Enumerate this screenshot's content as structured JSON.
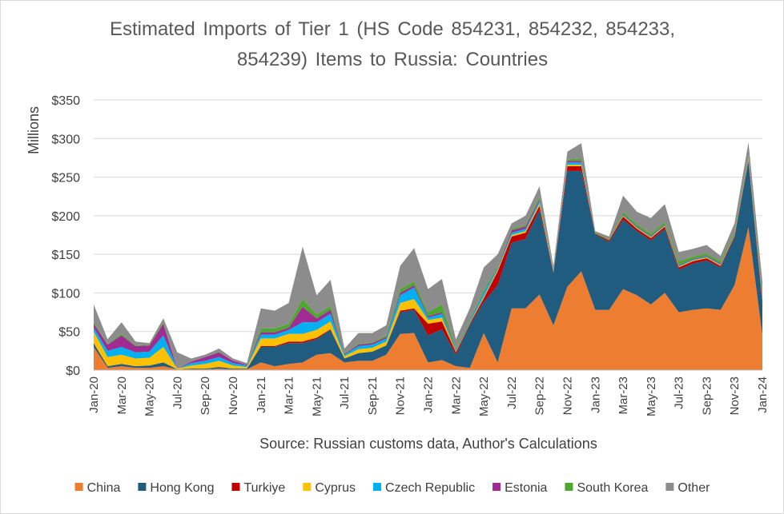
{
  "chart_data": {
    "type": "stacked-area",
    "title": "Estimated Imports of Tier 1 (HS Code 854231, 854232, 854233, 854239) Items to Russia: Countries",
    "x_label": "Source: Russian customs data, Author's Calculations",
    "y_label": "Millions",
    "categories": [
      "Jan-20",
      null,
      "Mar-20",
      null,
      "May-20",
      null,
      "Jul-20",
      null,
      "Sep-20",
      null,
      "Nov-20",
      null,
      "Jan-21",
      null,
      "Mar-21",
      null,
      "May-21",
      null,
      "Jul-21",
      null,
      "Sep-21",
      null,
      "Nov-21",
      null,
      "Jan-22",
      null,
      "Mar-22",
      null,
      "May-22",
      null,
      "Jul-22",
      null,
      "Sep-22",
      null,
      "Nov-22",
      null,
      "Jan-23",
      null,
      "Mar-23",
      null,
      "May-23",
      null,
      "Jul-23",
      null,
      "Sep-23",
      null,
      "Nov-23",
      null,
      "Jan-24"
    ],
    "ylim": [
      0,
      350
    ],
    "yticks": [
      {
        "value": 0,
        "label": "$0"
      },
      {
        "value": 50,
        "label": "$50"
      },
      {
        "value": 100,
        "label": "$100"
      },
      {
        "value": 150,
        "label": "$150"
      },
      {
        "value": 200,
        "label": "$200"
      },
      {
        "value": 250,
        "label": "$250"
      },
      {
        "value": 300,
        "label": "$300"
      },
      {
        "value": 350,
        "label": "$350"
      }
    ],
    "grid": true,
    "legend": "bottom",
    "series": [
      {
        "name": "China",
        "color": "#ed7d31",
        "values": [
          30,
          3,
          5,
          3,
          3,
          5,
          1,
          1,
          1,
          2,
          1,
          1,
          10,
          5,
          8,
          10,
          20,
          22,
          10,
          12,
          12,
          20,
          47,
          48,
          10,
          13,
          5,
          3,
          48,
          10,
          80,
          80,
          98,
          58,
          108,
          128,
          78,
          78,
          105,
          97,
          85,
          100,
          75,
          78,
          80,
          78,
          110,
          185,
          45
        ]
      },
      {
        "name": "Hong Kong",
        "color": "#1f5c80",
        "values": [
          5,
          2,
          3,
          2,
          3,
          5,
          0,
          1,
          1,
          2,
          1,
          1,
          20,
          25,
          27,
          25,
          20,
          30,
          5,
          10,
          12,
          12,
          28,
          30,
          35,
          40,
          15,
          55,
          40,
          100,
          85,
          90,
          110,
          68,
          150,
          130,
          98,
          88,
          90,
          83,
          83,
          83,
          55,
          60,
          62,
          55,
          62,
          85,
          40
        ]
      },
      {
        "name": "Turkiye",
        "color": "#c00000",
        "values": [
          0,
          0,
          0,
          0,
          0,
          0,
          0,
          0,
          0,
          0,
          0,
          0,
          1,
          1,
          2,
          2,
          2,
          1,
          0,
          0,
          0,
          0,
          2,
          2,
          15,
          10,
          3,
          2,
          5,
          18,
          8,
          8,
          5,
          1,
          6,
          6,
          1,
          2,
          4,
          3,
          3,
          3,
          3,
          3,
          3,
          2,
          2,
          2,
          5
        ]
      },
      {
        "name": "Cyprus",
        "color": "#ffc000",
        "values": [
          15,
          12,
          12,
          10,
          10,
          20,
          1,
          4,
          6,
          8,
          4,
          2,
          10,
          10,
          10,
          10,
          10,
          10,
          3,
          5,
          5,
          5,
          10,
          12,
          5,
          5,
          1,
          1,
          2,
          2,
          2,
          2,
          3,
          1,
          2,
          2,
          0,
          0,
          1,
          1,
          1,
          1,
          1,
          1,
          1,
          1,
          1,
          1,
          1
        ]
      },
      {
        "name": "Czech Republic",
        "color": "#00b0f0",
        "values": [
          5,
          8,
          10,
          8,
          8,
          15,
          0,
          3,
          4,
          5,
          3,
          2,
          5,
          5,
          5,
          15,
          10,
          10,
          2,
          4,
          4,
          4,
          10,
          15,
          3,
          5,
          1,
          2,
          5,
          2,
          3,
          3,
          3,
          1,
          3,
          3,
          0,
          0,
          1,
          1,
          1,
          1,
          1,
          1,
          1,
          1,
          1,
          1,
          1
        ]
      },
      {
        "name": "Estonia",
        "color": "#a02b93",
        "values": [
          5,
          8,
          15,
          8,
          8,
          15,
          0,
          2,
          5,
          6,
          3,
          1,
          3,
          3,
          3,
          20,
          5,
          5,
          1,
          2,
          2,
          2,
          3,
          3,
          2,
          2,
          1,
          1,
          1,
          1,
          3,
          3,
          2,
          1,
          2,
          2,
          0,
          0,
          1,
          1,
          1,
          1,
          1,
          1,
          1,
          1,
          1,
          1,
          1
        ]
      },
      {
        "name": "South Korea",
        "color": "#4ea72e",
        "values": [
          2,
          1,
          2,
          1,
          1,
          2,
          0,
          0,
          0,
          1,
          0,
          0,
          5,
          5,
          5,
          10,
          5,
          5,
          1,
          1,
          1,
          2,
          5,
          5,
          5,
          10,
          2,
          2,
          3,
          2,
          2,
          2,
          3,
          1,
          2,
          3,
          1,
          1,
          3,
          3,
          3,
          3,
          5,
          3,
          3,
          3,
          3,
          3,
          5
        ]
      },
      {
        "name": "Other",
        "color": "#8c8c8c",
        "values": [
          23,
          6,
          15,
          5,
          2,
          5,
          21,
          4,
          3,
          4,
          3,
          2,
          26,
          23,
          27,
          68,
          25,
          34,
          6,
          14,
          12,
          13,
          30,
          43,
          30,
          33,
          12,
          14,
          29,
          15,
          7,
          12,
          14,
          4,
          10,
          20,
          2,
          4,
          21,
          16,
          20,
          23,
          12,
          10,
          11,
          7,
          10,
          17,
          17
        ]
      }
    ]
  }
}
